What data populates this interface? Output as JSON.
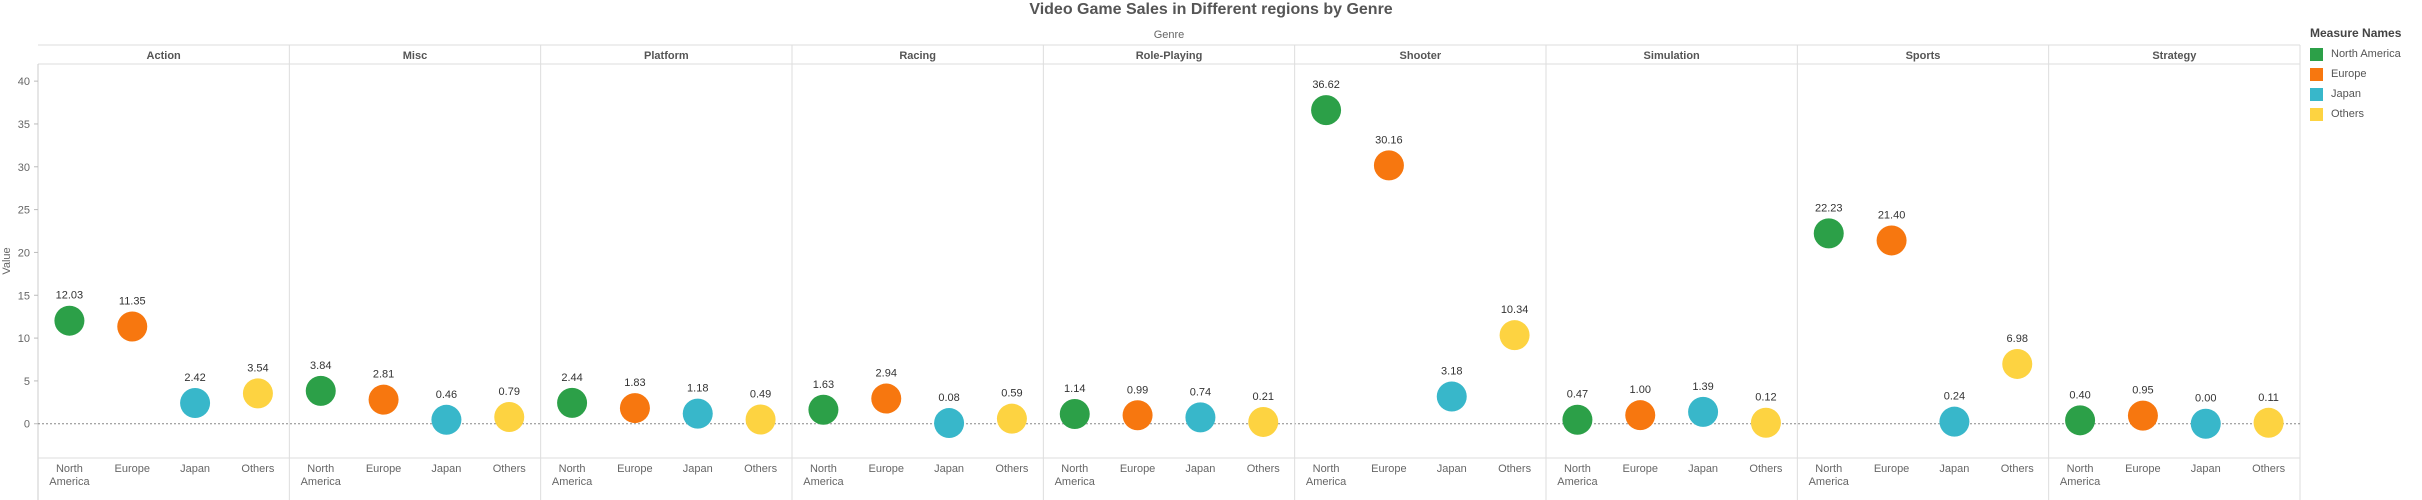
{
  "chart_data": {
    "type": "scatter",
    "title": "Video Game Sales in Different regions by Genre",
    "column_header": "Genre",
    "ylabel": "Value",
    "ylim": [
      -4,
      42
    ],
    "yticks": [
      0,
      5,
      10,
      15,
      20,
      25,
      30,
      35,
      40
    ],
    "reference_line": 0,
    "genres": [
      "Action",
      "Misc",
      "Platform",
      "Racing",
      "Role-Playing",
      "Shooter",
      "Simulation",
      "Sports",
      "Strategy"
    ],
    "measures": [
      "North America",
      "Europe",
      "Japan",
      "Others"
    ],
    "x_tick_labels": [
      [
        "North",
        "America"
      ],
      [
        "Europe"
      ],
      [
        "Japan"
      ],
      [
        "Others"
      ]
    ],
    "series": [
      {
        "name": "North America",
        "values": [
          12.03,
          3.84,
          2.44,
          1.63,
          1.14,
          36.62,
          0.47,
          22.23,
          0.4
        ]
      },
      {
        "name": "Europe",
        "values": [
          11.35,
          2.81,
          1.83,
          2.94,
          0.99,
          30.16,
          1.0,
          21.4,
          0.95
        ]
      },
      {
        "name": "Japan",
        "values": [
          2.42,
          0.46,
          1.18,
          0.08,
          0.74,
          3.18,
          1.39,
          0.24,
          0.0
        ]
      },
      {
        "name": "Others",
        "values": [
          3.54,
          0.79,
          0.49,
          0.59,
          0.21,
          10.34,
          0.12,
          6.98,
          0.11
        ]
      }
    ],
    "data_labels": [
      [
        "12.03",
        "3.84",
        "2.44",
        "1.63",
        "1.14",
        "36.62",
        "0.47",
        "22.23",
        "0.40"
      ],
      [
        "11.35",
        "2.81",
        "1.83",
        "2.94",
        "0.99",
        "30.16",
        "1.00",
        "21.40",
        "0.95"
      ],
      [
        "2.42",
        "0.46",
        "1.18",
        "0.08",
        "0.74",
        "3.18",
        "1.39",
        "0.24",
        "0.00"
      ],
      [
        "3.54",
        "0.79",
        "0.49",
        "0.59",
        "0.21",
        "10.34",
        "0.12",
        "6.98",
        "0.11"
      ]
    ],
    "colors": {
      "North America": "#2ca048",
      "Europe": "#f7770f",
      "Japan": "#38b7ca",
      "Others": "#fdd341"
    },
    "legend": {
      "title": "Measure Names",
      "placement": "right"
    },
    "grid": false
  }
}
